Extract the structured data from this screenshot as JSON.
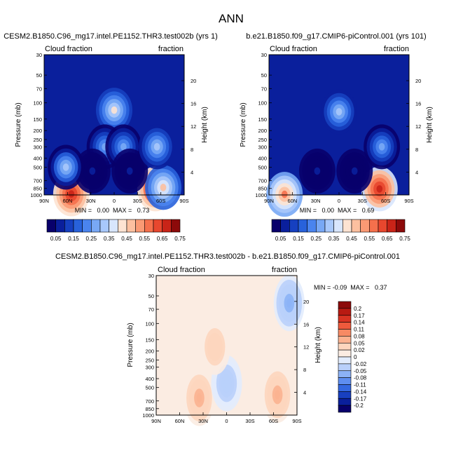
{
  "page": {
    "title": "ANN"
  },
  "panels": [
    {
      "id": "p1",
      "header": "CESM2.B1850.C96_mg17.intel.PE1152.THR3.test002b (yrs 1)",
      "left_label": "Cloud fraction",
      "right_label": "fraction",
      "ylabel": "Pressure (mb)",
      "y2label": "Height (km)",
      "stats": "MIN =   0.00  MAX =   0.73"
    },
    {
      "id": "p2",
      "header": "b.e21.B1850.f09_g17.CMIP6-piControl.001 (yrs 101)",
      "left_label": "Cloud fraction",
      "right_label": "fraction",
      "ylabel": "Pressure (mb)",
      "y2label": "Height (km)",
      "stats": "MIN =   0.00  MAX =   0.69"
    },
    {
      "id": "p3",
      "header": "CESM2.B1850.C96_mg17.intel.PE1152.THR3.test002b - b.e21.B1850.f09_g17.CMIP6-piControl.001",
      "left_label": "Cloud fraction",
      "right_label": "fraction",
      "ylabel": "Pressure (mb)",
      "y2label": "Height (km)",
      "stats": "MIN = -0.09  MAX =   0.37"
    }
  ],
  "chart_data": [
    {
      "type": "heatmap",
      "title": "CESM2.B1850.C96_mg17.intel.PE1152.THR3.test002b (yrs 1)",
      "xlabel": "",
      "ylabel": "Pressure (mb)",
      "y2label": "Height (km)",
      "x_ticks": [
        "90N",
        "60N",
        "30N",
        "0",
        "30S",
        "60S",
        "90S"
      ],
      "y_ticks": [
        30,
        50,
        70,
        100,
        150,
        200,
        250,
        300,
        400,
        500,
        700,
        850,
        1000
      ],
      "y2_ticks": [
        4,
        8,
        12,
        16,
        20
      ],
      "y_scale": "log",
      "ylim": [
        1000,
        30
      ],
      "min": 0.0,
      "max": 0.73,
      "features": [
        {
          "lat": 55,
          "p": 975,
          "value": 0.7
        },
        {
          "lat": -53,
          "p": 860,
          "value": 0.73
        },
        {
          "lat": -63,
          "p": 830,
          "value": 0.45
        },
        {
          "lat": 0,
          "p": 120,
          "value": 0.4
        },
        {
          "lat": 12,
          "p": 300,
          "value": 0.3
        },
        {
          "lat": -12,
          "p": 300,
          "value": 0.3
        },
        {
          "lat": 28,
          "p": 550,
          "value": 0.05
        },
        {
          "lat": -20,
          "p": 550,
          "value": 0.07
        },
        {
          "lat": 62,
          "p": 500,
          "value": 0.33
        },
        {
          "lat": -55,
          "p": 300,
          "value": 0.35
        }
      ]
    },
    {
      "type": "heatmap",
      "title": "b.e21.B1850.f09_g17.CMIP6-piControl.001 (yrs 101)",
      "xlabel": "",
      "ylabel": "Pressure (mb)",
      "y2label": "Height (km)",
      "x_ticks": [
        "90N",
        "60N",
        "30N",
        "0",
        "30S",
        "60S",
        "90S"
      ],
      "y_ticks": [
        30,
        50,
        70,
        100,
        150,
        200,
        250,
        300,
        400,
        500,
        700,
        850,
        1000
      ],
      "y2_ticks": [
        4,
        8,
        12,
        16,
        20
      ],
      "y_scale": "log",
      "ylim": [
        1000,
        30
      ],
      "min": 0.0,
      "max": 0.69,
      "features": [
        {
          "lat": 70,
          "p": 985,
          "value": 0.55
        },
        {
          "lat": -52,
          "p": 860,
          "value": 0.69
        },
        {
          "lat": 0,
          "p": 125,
          "value": 0.35
        },
        {
          "lat": -55,
          "p": 300,
          "value": 0.3
        },
        {
          "lat": 28,
          "p": 550,
          "value": 0.05
        },
        {
          "lat": -20,
          "p": 550,
          "value": 0.07
        }
      ]
    },
    {
      "type": "heatmap",
      "title": "CESM2.B1850.C96_mg17.intel.PE1152.THR3.test002b - b.e21.B1850.f09_g17.CMIP6-piControl.001",
      "xlabel": "",
      "ylabel": "Pressure (mb)",
      "y2label": "Height (km)",
      "x_ticks": [
        "90N",
        "60N",
        "30N",
        "0",
        "30S",
        "60S",
        "90S"
      ],
      "y_ticks": [
        30,
        50,
        70,
        100,
        150,
        200,
        250,
        300,
        400,
        500,
        700,
        850,
        1000
      ],
      "y2_ticks": [
        4,
        8,
        12,
        16,
        20
      ],
      "y_scale": "log",
      "ylim": [
        1000,
        30
      ],
      "min": -0.09,
      "max": 0.37,
      "features": [
        {
          "lat": 35,
          "p": 650,
          "value": 0.06
        },
        {
          "lat": -65,
          "p": 600,
          "value": 0.07
        },
        {
          "lat": 0,
          "p": 450,
          "value": -0.04
        },
        {
          "lat": -80,
          "p": 60,
          "value": -0.06
        },
        {
          "lat": 15,
          "p": 180,
          "value": 0.04
        }
      ]
    }
  ],
  "colorbars": {
    "abs": {
      "labels": [
        "0.05",
        "0.15",
        "0.25",
        "0.35",
        "0.45",
        "0.55",
        "0.65",
        "0.75"
      ],
      "colors": [
        "#08006b",
        "#0a1f9c",
        "#1640c0",
        "#2862db",
        "#4a84ee",
        "#78a8f5",
        "#a8c8fb",
        "#d8e6fd",
        "#fde3d2",
        "#fcc0a0",
        "#fa9a74",
        "#f5704c",
        "#e8472e",
        "#c92418",
        "#8c0a0a"
      ]
    },
    "diff": {
      "labels": [
        "0.2",
        "0.17",
        "0.14",
        "0.11",
        "0.08",
        "0.05",
        "0.02",
        "0",
        "-0.02",
        "-0.05",
        "-0.08",
        "-0.11",
        "-0.14",
        "-0.17",
        "-0.2"
      ],
      "colors": [
        "#8c0a0a",
        "#b81a12",
        "#d83322",
        "#ee5a3c",
        "#f78a64",
        "#fbb290",
        "#fdd6be",
        "#fbece2",
        "#e2ecfd",
        "#b9d0fb",
        "#8cb2f6",
        "#5e8ef0",
        "#3468e0",
        "#1840c0",
        "#0a1f9c",
        "#08006b"
      ]
    }
  }
}
